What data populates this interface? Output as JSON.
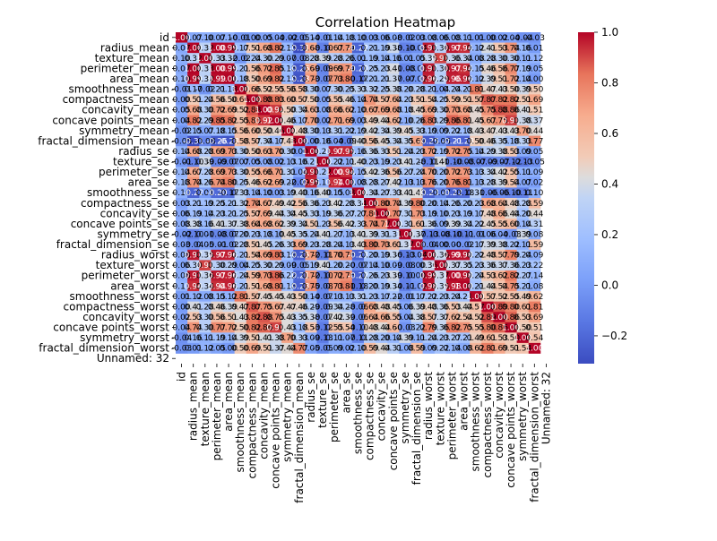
{
  "chart_data": {
    "type": "heatmap",
    "title": "Correlation Heatmap",
    "labels": [
      "id",
      "radius_mean",
      "texture_mean",
      "perimeter_mean",
      "area_mean",
      "smoothness_mean",
      "compactness_mean",
      "concavity_mean",
      "concave points_mean",
      "symmetry_mean",
      "fractal_dimension_mean",
      "radius_se",
      "texture_se",
      "perimeter_se",
      "area_se",
      "smoothness_se",
      "compactness_se",
      "concavity_se",
      "concave points_se",
      "symmetry_se",
      "fractal_dimension_se",
      "radius_worst",
      "texture_worst",
      "perimeter_worst",
      "area_worst",
      "smoothness_worst",
      "compactness_worst",
      "concavity_worst",
      "concave points_worst",
      "symmetry_worst",
      "fractal_dimension_worst",
      "Unnamed: 32"
    ],
    "values": [
      [
        1.0,
        0.07,
        0.1,
        0.07,
        0.1,
        -0.01,
        0.0,
        0.05,
        0.04,
        -0.02,
        -0.05,
        0.14,
        -0.01,
        0.14,
        0.18,
        0.1,
        0.03,
        0.06,
        0.08,
        -0.02,
        0.03,
        0.08,
        0.06,
        0.08,
        0.11,
        0.01,
        -0.0,
        0.02,
        0.04,
        -0.04,
        -0.03,
        null
      ],
      [
        0.07,
        1.0,
        0.32,
        1.0,
        0.99,
        0.17,
        0.51,
        0.68,
        0.82,
        0.15,
        -0.31,
        0.68,
        -0.1,
        0.67,
        0.74,
        -0.22,
        0.21,
        0.19,
        0.38,
        -0.1,
        -0.04,
        0.97,
        0.3,
        0.97,
        0.94,
        0.12,
        0.41,
        0.53,
        0.74,
        0.16,
        0.01,
        null
      ],
      [
        0.1,
        0.32,
        1.0,
        0.33,
        0.32,
        -0.02,
        0.24,
        0.3,
        0.29,
        0.07,
        -0.08,
        0.28,
        0.39,
        0.28,
        0.26,
        0.01,
        0.19,
        0.14,
        0.16,
        0.01,
        0.05,
        0.35,
        0.91,
        0.36,
        0.34,
        0.08,
        0.28,
        0.3,
        0.3,
        0.11,
        0.12,
        null
      ],
      [
        0.07,
        1.0,
        0.33,
        1.0,
        0.99,
        0.21,
        0.56,
        0.72,
        0.85,
        0.18,
        -0.26,
        0.69,
        -0.09,
        0.69,
        0.74,
        -0.2,
        0.25,
        0.23,
        0.41,
        -0.08,
        -0.01,
        0.97,
        0.3,
        0.97,
        0.94,
        0.15,
        0.46,
        0.56,
        0.77,
        0.19,
        0.05,
        null
      ],
      [
        0.1,
        0.99,
        0.32,
        0.99,
        1.0,
        0.18,
        0.5,
        0.69,
        0.82,
        0.15,
        -0.28,
        0.73,
        -0.07,
        0.73,
        0.8,
        -0.17,
        0.21,
        0.21,
        0.37,
        -0.07,
        -0.02,
        0.96,
        0.29,
        0.96,
        0.96,
        0.12,
        0.39,
        0.51,
        0.72,
        0.14,
        0.0,
        null
      ],
      [
        -0.01,
        0.17,
        -0.02,
        0.21,
        0.18,
        1.0,
        0.66,
        0.52,
        0.55,
        0.56,
        0.58,
        0.3,
        0.07,
        0.3,
        0.25,
        0.33,
        0.32,
        0.25,
        0.38,
        0.2,
        0.28,
        0.21,
        0.04,
        0.24,
        0.21,
        0.81,
        0.47,
        0.43,
        0.5,
        0.39,
        0.5,
        null
      ],
      [
        0.0,
        0.51,
        0.24,
        0.56,
        0.5,
        0.66,
        1.0,
        0.88,
        0.83,
        0.6,
        0.57,
        0.5,
        0.05,
        0.55,
        0.46,
        0.14,
        0.74,
        0.57,
        0.64,
        0.23,
        0.51,
        0.54,
        0.25,
        0.59,
        0.51,
        0.57,
        0.87,
        0.82,
        0.82,
        0.51,
        0.69,
        null
      ],
      [
        0.05,
        0.68,
        0.3,
        0.72,
        0.69,
        0.52,
        0.88,
        1.0,
        0.92,
        0.5,
        0.34,
        0.63,
        0.08,
        0.66,
        0.62,
        0.1,
        0.67,
        0.69,
        0.68,
        0.18,
        0.45,
        0.69,
        0.3,
        0.73,
        0.68,
        0.45,
        0.75,
        0.88,
        0.86,
        0.41,
        0.51,
        null
      ],
      [
        0.04,
        0.82,
        0.29,
        0.85,
        0.82,
        0.55,
        0.83,
        0.92,
        1.0,
        0.46,
        0.17,
        0.7,
        0.02,
        0.71,
        0.69,
        0.03,
        0.49,
        0.44,
        0.62,
        0.1,
        0.26,
        0.83,
        0.29,
        0.86,
        0.81,
        0.45,
        0.67,
        0.75,
        0.91,
        0.38,
        0.37,
        null
      ],
      [
        -0.02,
        0.15,
        0.07,
        0.18,
        0.15,
        0.56,
        0.6,
        0.5,
        0.46,
        1.0,
        0.48,
        0.3,
        0.13,
        0.31,
        0.22,
        0.19,
        0.42,
        0.34,
        0.39,
        0.45,
        0.33,
        0.19,
        0.09,
        0.22,
        0.18,
        0.43,
        0.47,
        0.43,
        0.43,
        0.7,
        0.44,
        null
      ],
      [
        -0.05,
        -0.31,
        -0.08,
        -0.26,
        -0.28,
        0.58,
        0.57,
        0.34,
        0.17,
        0.48,
        1.0,
        0.0,
        0.16,
        0.04,
        -0.09,
        0.4,
        0.56,
        0.45,
        0.34,
        0.35,
        0.69,
        -0.25,
        -0.05,
        -0.21,
        -0.23,
        0.5,
        0.46,
        0.35,
        0.18,
        0.33,
        0.77,
        null
      ],
      [
        0.14,
        0.68,
        0.28,
        0.69,
        0.73,
        0.3,
        0.5,
        0.63,
        0.7,
        0.3,
        0.0,
        1.0,
        0.21,
        0.97,
        0.95,
        0.16,
        0.36,
        0.33,
        0.51,
        0.24,
        0.23,
        0.72,
        0.19,
        0.72,
        0.75,
        0.14,
        0.29,
        0.38,
        0.53,
        0.09,
        0.05,
        null
      ],
      [
        -0.01,
        -0.1,
        0.39,
        -0.09,
        -0.07,
        0.07,
        0.05,
        0.08,
        0.02,
        0.13,
        0.16,
        0.21,
        1.0,
        0.22,
        0.11,
        0.4,
        0.23,
        0.19,
        0.23,
        0.41,
        0.28,
        -0.11,
        0.41,
        -0.1,
        -0.08,
        -0.07,
        -0.09,
        -0.07,
        -0.12,
        -0.13,
        -0.05,
        null
      ],
      [
        0.14,
        0.67,
        0.28,
        0.69,
        0.73,
        0.3,
        0.55,
        0.66,
        0.71,
        0.31,
        0.04,
        0.97,
        0.22,
        1.0,
        0.94,
        0.15,
        0.42,
        0.36,
        0.56,
        0.27,
        0.24,
        0.7,
        0.2,
        0.72,
        0.73,
        0.13,
        0.34,
        0.42,
        0.55,
        0.11,
        0.09,
        null
      ],
      [
        0.18,
        0.74,
        0.26,
        0.74,
        0.8,
        0.25,
        0.46,
        0.62,
        0.69,
        0.22,
        -0.09,
        0.95,
        0.11,
        0.94,
        1.0,
        0.08,
        0.28,
        0.27,
        0.42,
        0.13,
        0.13,
        0.76,
        0.2,
        0.76,
        0.81,
        0.13,
        0.28,
        0.39,
        0.54,
        0.07,
        0.02,
        null
      ],
      [
        0.1,
        -0.22,
        0.01,
        -0.2,
        -0.17,
        0.33,
        0.14,
        0.1,
        0.03,
        0.19,
        0.4,
        0.16,
        0.4,
        0.15,
        0.08,
        1.0,
        0.34,
        0.27,
        0.33,
        0.41,
        0.43,
        -0.23,
        -0.07,
        -0.22,
        -0.18,
        0.31,
        -0.06,
        -0.06,
        -0.1,
        -0.11,
        0.1,
        null
      ],
      [
        0.03,
        0.21,
        0.19,
        0.25,
        0.21,
        0.32,
        0.74,
        0.67,
        0.49,
        0.42,
        0.56,
        0.36,
        0.23,
        0.42,
        0.28,
        0.34,
        1.0,
        0.8,
        0.74,
        0.39,
        0.8,
        0.2,
        0.14,
        0.26,
        0.2,
        0.23,
        0.68,
        0.64,
        0.48,
        0.28,
        0.59,
        null
      ],
      [
        0.06,
        0.19,
        0.14,
        0.23,
        0.21,
        0.25,
        0.57,
        0.69,
        0.44,
        0.34,
        0.45,
        0.33,
        0.19,
        0.36,
        0.27,
        0.27,
        0.8,
        1.0,
        0.77,
        0.31,
        0.73,
        0.19,
        0.1,
        0.23,
        0.19,
        0.17,
        0.48,
        0.66,
        0.44,
        0.2,
        0.44,
        null
      ],
      [
        0.08,
        0.38,
        0.16,
        0.41,
        0.37,
        0.38,
        0.64,
        0.68,
        0.62,
        0.39,
        0.34,
        0.51,
        0.23,
        0.56,
        0.42,
        0.33,
        0.74,
        0.77,
        1.0,
        0.31,
        0.61,
        0.36,
        0.09,
        0.39,
        0.34,
        0.22,
        0.45,
        0.55,
        0.6,
        0.14,
        0.31,
        null
      ],
      [
        -0.02,
        -0.1,
        0.01,
        -0.08,
        -0.07,
        0.2,
        0.23,
        0.18,
        0.1,
        0.45,
        0.35,
        0.24,
        0.41,
        0.27,
        0.13,
        0.41,
        0.39,
        0.31,
        0.31,
        1.0,
        0.37,
        -0.13,
        -0.08,
        -0.1,
        -0.11,
        -0.01,
        0.06,
        0.04,
        -0.03,
        0.39,
        0.08,
        null
      ],
      [
        0.03,
        -0.04,
        0.05,
        -0.01,
        -0.02,
        0.28,
        0.51,
        0.45,
        0.26,
        0.33,
        0.69,
        0.23,
        0.28,
        0.24,
        0.13,
        0.43,
        0.8,
        0.73,
        0.61,
        0.37,
        1.0,
        -0.04,
        0.0,
        -0.0,
        -0.02,
        0.17,
        0.39,
        0.38,
        0.22,
        0.11,
        0.59,
        null
      ],
      [
        0.08,
        0.97,
        0.35,
        0.97,
        0.96,
        0.21,
        0.54,
        0.69,
        0.83,
        0.19,
        -0.25,
        0.72,
        -0.11,
        0.7,
        0.76,
        -0.23,
        0.2,
        0.19,
        0.36,
        -0.13,
        -0.04,
        1.0,
        0.36,
        0.99,
        0.98,
        0.22,
        0.48,
        0.57,
        0.79,
        0.24,
        0.09,
        null
      ],
      [
        0.06,
        0.3,
        0.91,
        0.3,
        0.29,
        0.04,
        0.25,
        0.3,
        0.29,
        0.09,
        -0.05,
        0.19,
        0.41,
        0.2,
        0.2,
        -0.07,
        0.14,
        0.1,
        0.09,
        -0.08,
        0.0,
        0.36,
        1.0,
        0.37,
        0.35,
        0.23,
        0.36,
        0.37,
        0.36,
        0.23,
        0.22,
        null
      ],
      [
        0.08,
        0.97,
        0.36,
        0.97,
        0.96,
        0.24,
        0.59,
        0.73,
        0.86,
        0.22,
        -0.21,
        0.72,
        -0.1,
        0.72,
        0.76,
        -0.22,
        0.26,
        0.23,
        0.39,
        -0.1,
        -0.0,
        0.99,
        0.37,
        1.0,
        0.98,
        0.24,
        0.53,
        0.62,
        0.82,
        0.27,
        0.14,
        null
      ],
      [
        0.11,
        0.94,
        0.34,
        0.94,
        0.96,
        0.21,
        0.51,
        0.68,
        0.81,
        0.18,
        -0.23,
        0.75,
        -0.08,
        0.73,
        0.81,
        -0.18,
        0.2,
        0.19,
        0.34,
        -0.11,
        -0.02,
        0.98,
        0.35,
        0.98,
        1.0,
        0.21,
        0.44,
        0.54,
        0.75,
        0.21,
        0.08,
        null
      ],
      [
        0.01,
        0.12,
        0.08,
        0.15,
        0.12,
        0.81,
        0.57,
        0.45,
        0.45,
        0.43,
        0.5,
        0.14,
        -0.07,
        0.13,
        0.13,
        0.31,
        0.23,
        0.17,
        0.22,
        -0.01,
        0.17,
        0.22,
        0.23,
        0.24,
        0.21,
        1.0,
        0.57,
        0.52,
        0.55,
        0.49,
        0.62,
        null
      ],
      [
        -0.0,
        0.41,
        0.28,
        0.46,
        0.39,
        0.47,
        0.87,
        0.75,
        0.67,
        0.47,
        0.46,
        0.29,
        -0.09,
        0.34,
        0.28,
        -0.06,
        0.68,
        0.48,
        0.45,
        0.06,
        0.39,
        0.48,
        0.36,
        0.53,
        0.44,
        0.57,
        1.0,
        0.89,
        0.8,
        0.61,
        0.81,
        null
      ],
      [
        0.02,
        0.53,
        0.3,
        0.56,
        0.51,
        0.43,
        0.82,
        0.88,
        0.75,
        0.43,
        0.35,
        0.38,
        -0.07,
        0.42,
        0.39,
        -0.06,
        0.64,
        0.66,
        0.55,
        0.04,
        0.38,
        0.57,
        0.37,
        0.62,
        0.54,
        0.52,
        0.89,
        1.0,
        0.86,
        0.53,
        0.69,
        null
      ],
      [
        0.04,
        0.74,
        0.3,
        0.77,
        0.72,
        0.5,
        0.82,
        0.86,
        0.91,
        0.43,
        0.18,
        0.53,
        -0.12,
        0.55,
        0.54,
        -0.1,
        0.48,
        0.44,
        0.6,
        -0.03,
        0.22,
        0.79,
        0.36,
        0.82,
        0.75,
        0.55,
        0.8,
        0.86,
        1.0,
        0.5,
        0.51,
        null
      ],
      [
        -0.04,
        0.16,
        0.11,
        0.19,
        0.14,
        0.39,
        0.51,
        0.41,
        0.38,
        0.7,
        0.33,
        0.09,
        -0.13,
        0.11,
        0.07,
        -0.11,
        0.28,
        0.2,
        0.14,
        0.39,
        0.11,
        0.24,
        0.23,
        0.27,
        0.21,
        0.49,
        0.61,
        0.53,
        0.5,
        1.0,
        0.54,
        null
      ],
      [
        -0.03,
        0.01,
        0.12,
        0.05,
        0.0,
        0.5,
        0.69,
        0.51,
        0.37,
        0.44,
        0.77,
        0.05,
        -0.05,
        0.09,
        0.02,
        0.1,
        0.59,
        0.44,
        0.31,
        0.08,
        0.59,
        0.09,
        0.22,
        0.14,
        0.08,
        0.62,
        0.81,
        0.69,
        0.51,
        0.54,
        1.0,
        null
      ],
      [
        null,
        null,
        null,
        null,
        null,
        null,
        null,
        null,
        null,
        null,
        null,
        null,
        null,
        null,
        null,
        null,
        null,
        null,
        null,
        null,
        null,
        null,
        null,
        null,
        null,
        null,
        null,
        null,
        null,
        null,
        null,
        null
      ]
    ],
    "vmin": -0.31,
    "vmax": 1.0,
    "colormap": "coolwarm",
    "annot_decimals": 2,
    "colorbar_ticks": [
      -0.2,
      0.0,
      0.2,
      0.4,
      0.6,
      0.8,
      1.0
    ],
    "colorbar_tick_labels": [
      "−0.2",
      "0.0",
      "0.2",
      "0.4",
      "0.6",
      "0.8",
      "1.0"
    ]
  }
}
